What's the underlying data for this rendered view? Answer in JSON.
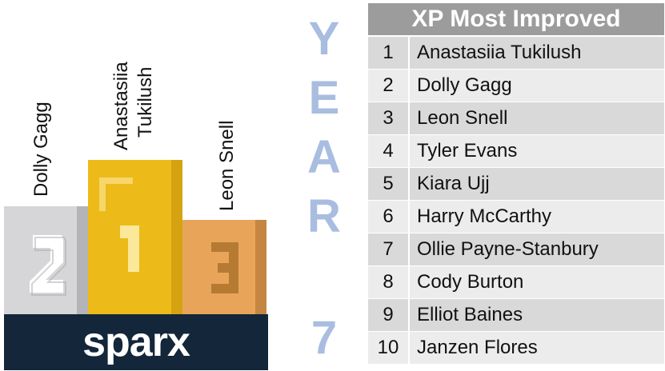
{
  "podium": {
    "second": {
      "name": "Dolly Gagg",
      "numeral": "2"
    },
    "first": {
      "name_line1": "Anastasiia",
      "name_line2": "Tukilush",
      "numeral": "1"
    },
    "third": {
      "name": "Leon Snell",
      "numeral": "3"
    },
    "colors": {
      "second": "#d6d6d8",
      "second_shade": "#b4b4b8",
      "first": "#ecbb1a",
      "first_shade": "#d5a212",
      "third": "#e8a55a",
      "third_shade": "#c48640",
      "brand_bg": "#13263a"
    }
  },
  "brand": {
    "logo_text": "sparx"
  },
  "year_label": {
    "letters": [
      "Y",
      "E",
      "A",
      "R",
      "7"
    ]
  },
  "table": {
    "title": "XP Most Improved",
    "rows": [
      {
        "rank": "1",
        "name": "Anastasiia Tukilush"
      },
      {
        "rank": "2",
        "name": "Dolly Gagg"
      },
      {
        "rank": "3",
        "name": "Leon Snell"
      },
      {
        "rank": "4",
        "name": "Tyler Evans"
      },
      {
        "rank": "5",
        "name": "Kiara Ujj"
      },
      {
        "rank": "6",
        "name": "Harry McCarthy"
      },
      {
        "rank": "7",
        "name": "Ollie Payne-Stanbury"
      },
      {
        "rank": "8",
        "name": "Cody Burton"
      },
      {
        "rank": "9",
        "name": "Elliot Baines"
      },
      {
        "rank": "10",
        "name": "Janzen Flores"
      }
    ]
  }
}
